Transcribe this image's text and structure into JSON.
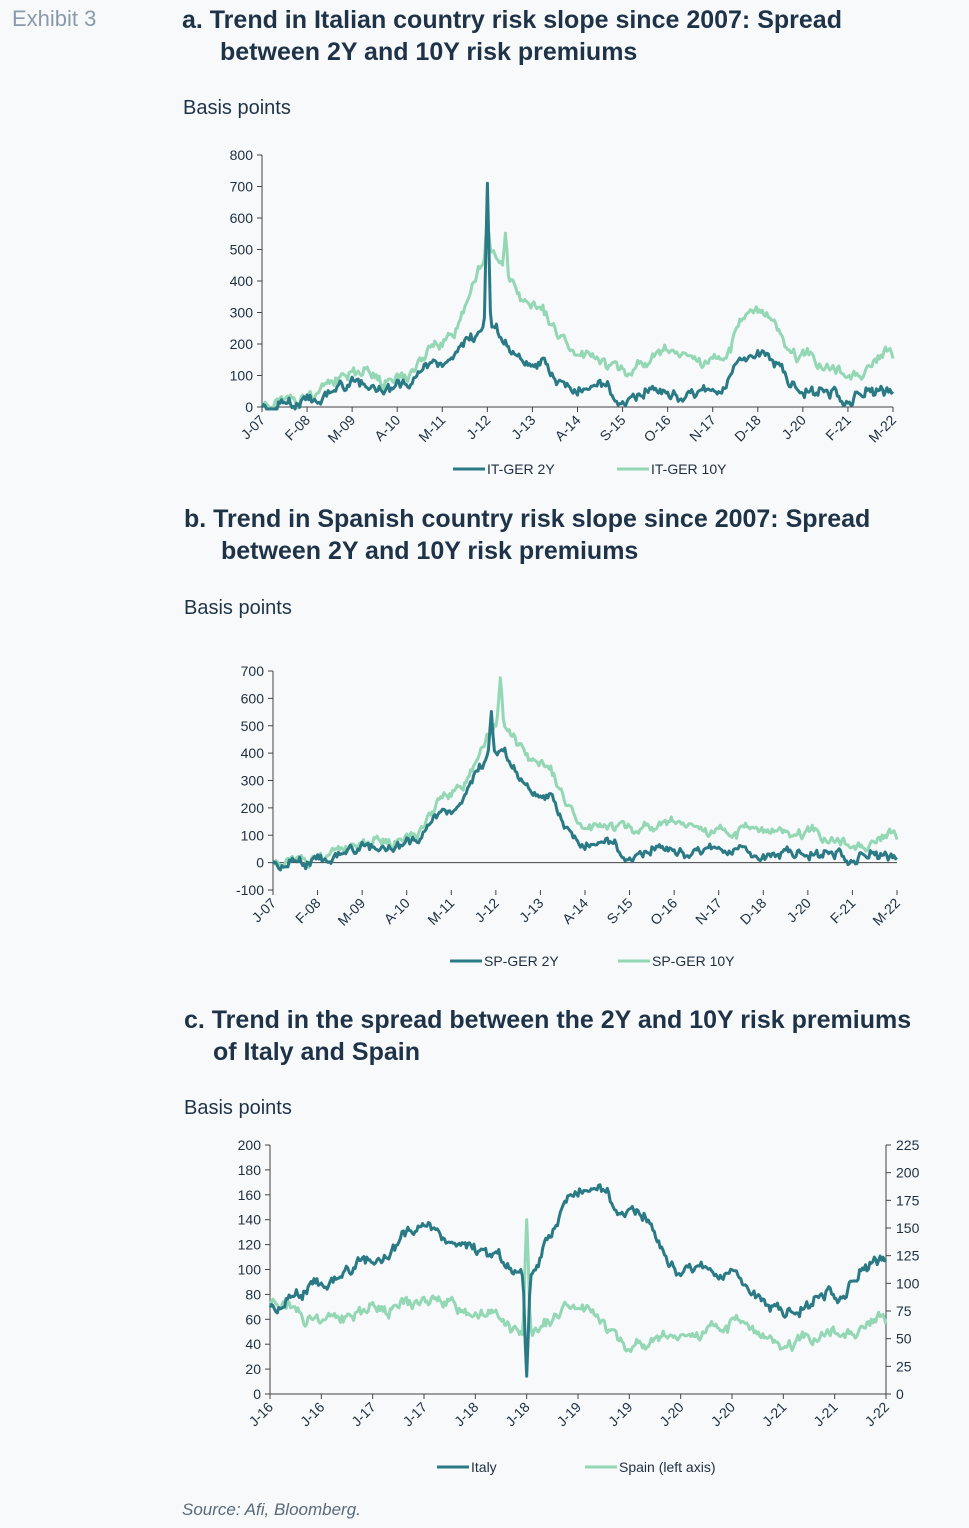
{
  "exhibit": "Exhibit 3",
  "source": "Source: Afi, Bloomberg.",
  "colors": {
    "dark": "#2a7a86",
    "light": "#93d7b4"
  },
  "chart_data": [
    {
      "type": "line",
      "title_line1": "a. Trend in Italian country risk slope since 2007: Spread",
      "title_line2": "between 2Y and 10Y risk premiums",
      "ylabel": "Basis points",
      "ylim": [
        0,
        800
      ],
      "yticks": [
        "800",
        "700",
        "600",
        "500",
        "400",
        "300",
        "200",
        "100",
        "0"
      ],
      "categories": [
        "J-07",
        "F-08",
        "M-09",
        "A-10",
        "M-11",
        "J-12",
        "J-13",
        "A-14",
        "S-15",
        "O-16",
        "N-17",
        "D-18",
        "J-20",
        "F-21",
        "M-22"
      ],
      "series": [
        {
          "name": "IT-GER 2Y",
          "color": "#2a7a86",
          "values": [
            5,
            20,
            70,
            55,
            150,
            240,
            140,
            60,
            40,
            50,
            40,
            180,
            60,
            30,
            60
          ]
        },
        {
          "name": "IT-GER 10Y",
          "color": "#93d7b4",
          "values": [
            10,
            35,
            120,
            90,
            200,
            480,
            310,
            190,
            120,
            170,
            140,
            300,
            160,
            110,
            170
          ]
        }
      ],
      "peaks": [
        {
          "series": 0,
          "pos": 5.0,
          "value": 710
        },
        {
          "series": 1,
          "pos": 5.0,
          "value": 580
        },
        {
          "series": 1,
          "pos": 5.4,
          "value": 530
        }
      ]
    },
    {
      "type": "line",
      "title_line1": "b. Trend in Spanish country risk slope since 2007: Spread",
      "title_line2": "between 2Y and 10Y risk premiums",
      "ylabel": "Basis points",
      "ylim": [
        -100,
        700
      ],
      "yticks": [
        "700",
        "600",
        "500",
        "400",
        "300",
        "200",
        "100",
        "0",
        "-100"
      ],
      "categories": [
        "J-07",
        "F-08",
        "M-09",
        "A-10",
        "M-11",
        "J-12",
        "J-13",
        "A-14",
        "S-15",
        "O-16",
        "N-17",
        "D-18",
        "J-20",
        "F-21",
        "M-22"
      ],
      "series": [
        {
          "name": "SP-GER 2Y",
          "color": "#2a7a86",
          "values": [
            0,
            10,
            50,
            60,
            200,
            400,
            250,
            70,
            40,
            50,
            40,
            30,
            40,
            20,
            30
          ]
        },
        {
          "name": "SP-GER 10Y",
          "color": "#93d7b4",
          "values": [
            2,
            20,
            80,
            90,
            250,
            500,
            350,
            150,
            130,
            140,
            110,
            110,
            110,
            70,
            100
          ]
        }
      ],
      "peaks": [
        {
          "series": 0,
          "pos": 4.9,
          "value": 540
        },
        {
          "series": 1,
          "pos": 5.1,
          "value": 660
        }
      ]
    },
    {
      "type": "line",
      "title_line1": "c. Trend in the spread between the 2Y and 10Y risk premiums",
      "title_line2": "of Italy and Spain",
      "ylabel": "Basis points",
      "ylim": [
        0,
        200
      ],
      "y2lim": [
        0,
        225
      ],
      "yticks": [
        "200",
        "180",
        "160",
        "140",
        "120",
        "100",
        "80",
        "60",
        "40",
        "20",
        "0"
      ],
      "y2ticks": [
        "225",
        "200",
        "175",
        "150",
        "125",
        "100",
        "75",
        "50",
        "25",
        "0"
      ],
      "categories": [
        "J-16",
        "J-16",
        "J-17",
        "J-17",
        "J-18",
        "J-18",
        "J-19",
        "J-19",
        "J-20",
        "J-20",
        "J-21",
        "J-21",
        "J-22"
      ],
      "series": [
        {
          "name": "Italy",
          "color": "#2a7a86",
          "axis": "right",
          "values": [
            80,
            100,
            120,
            150,
            130,
            110,
            185,
            170,
            115,
            105,
            75,
            90,
            125
          ]
        },
        {
          "name": "Spain (left axis)",
          "color": "#93d7b4",
          "axis": "left",
          "values": [
            75,
            60,
            70,
            75,
            70,
            45,
            75,
            40,
            45,
            55,
            40,
            50,
            60
          ]
        }
      ],
      "peaks": [
        {
          "series": 0,
          "pos": 5.0,
          "value": 20
        },
        {
          "series": 1,
          "pos": 5.0,
          "value": 135
        }
      ]
    }
  ]
}
